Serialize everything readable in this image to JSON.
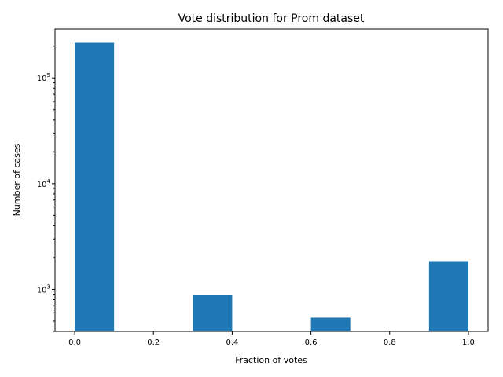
{
  "chart_data": {
    "type": "bar",
    "title": "Vote distribution for Prom dataset",
    "xlabel": "Fraction of votes",
    "ylabel": "Number of cases",
    "yscale": "log",
    "grid": false,
    "xlim": [
      -0.05,
      1.05
    ],
    "ylim": [
      400,
      290000
    ],
    "x_ticks": [
      0.0,
      0.2,
      0.4,
      0.6,
      0.8,
      1.0
    ],
    "x_tick_labels": [
      "0.0",
      "0.2",
      "0.4",
      "0.6",
      "0.8",
      "1.0"
    ],
    "y_ticks": [
      1000,
      10000,
      100000
    ],
    "y_tick_labels": [
      {
        "base": "10",
        "exp": "3"
      },
      {
        "base": "10",
        "exp": "4"
      },
      {
        "base": "10",
        "exp": "5"
      }
    ],
    "bar_color": "#1f77b4",
    "bins": [
      {
        "start": 0.0,
        "end": 0.1,
        "value": 215000
      },
      {
        "start": 0.3,
        "end": 0.4,
        "value": 880
      },
      {
        "start": 0.6,
        "end": 0.7,
        "value": 540
      },
      {
        "start": 0.9,
        "end": 1.0,
        "value": 1850
      }
    ]
  }
}
